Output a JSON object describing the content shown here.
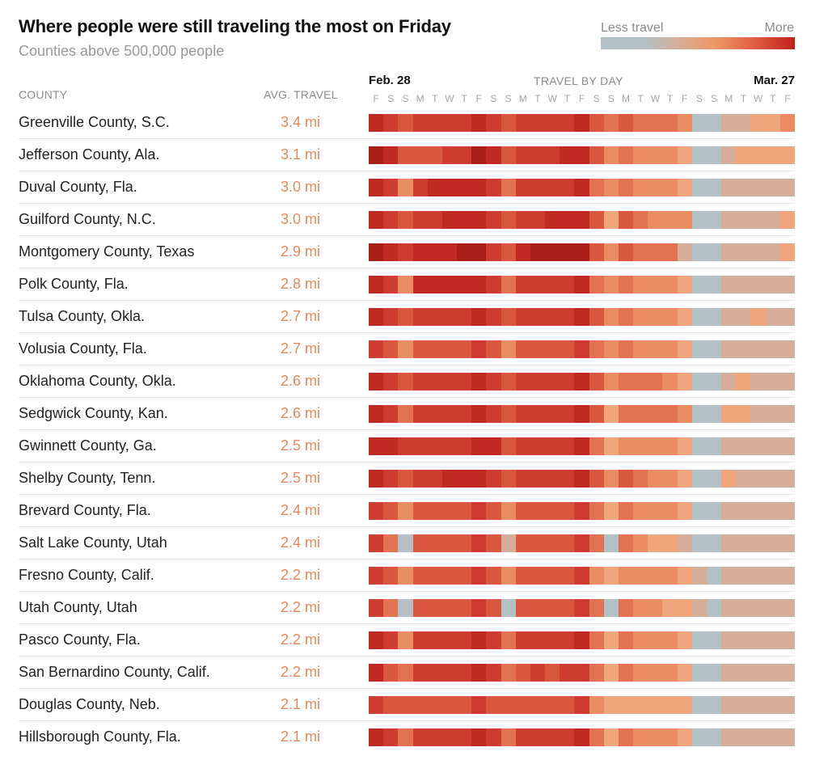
{
  "title": "Where people were still traveling the most on Friday",
  "subtitle": "Counties above 500,000 people",
  "legend": {
    "less_label": "Less travel",
    "more_label": "More"
  },
  "headers": {
    "county": "COUNTY",
    "avg_travel": "AVG. TRAVEL",
    "travel_by_day": "TRAVEL BY DAY",
    "start_date": "Feb. 28",
    "end_date": "Mar. 27"
  },
  "colors": {
    "scale": [
      "#b3c1c6",
      "#d6ad98",
      "#f0a57c",
      "#e98c62",
      "#e37252",
      "#d9563f",
      "#cd3c2f",
      "#c12a23",
      "#a81d16"
    ],
    "avg_text": "#e3895e"
  },
  "chart_data": {
    "type": "heatmap",
    "title": "Where people were still traveling the most on Friday",
    "subtitle": "Counties above 500,000 people",
    "x_start": "Feb. 28",
    "x_end": "Mar. 27",
    "x_label": "TRAVEL BY DAY",
    "value_scale": {
      "min": 0,
      "max": 8,
      "min_label": "Less travel",
      "max_label": "More"
    },
    "day_letters": [
      "F",
      "S",
      "S",
      "M",
      "T",
      "W",
      "T",
      "F",
      "S",
      "S",
      "M",
      "T",
      "W",
      "T",
      "F",
      "S",
      "S",
      "M",
      "T",
      "W",
      "T",
      "F",
      "S",
      "S",
      "M",
      "T",
      "W",
      "T",
      "F"
    ],
    "rows": [
      {
        "county": "Greenville County, S.C.",
        "avg": "3.4 mi",
        "levels": [
          7,
          6,
          5,
          6,
          6,
          6,
          6,
          7,
          6,
          5,
          6,
          6,
          6,
          6,
          7,
          5,
          4,
          5,
          4,
          4,
          4,
          3,
          0,
          0,
          1,
          1,
          2,
          2,
          3
        ]
      },
      {
        "county": "Jefferson County, Ala.",
        "avg": "3.1 mi",
        "levels": [
          8,
          7,
          5,
          5,
          5,
          6,
          6,
          8,
          7,
          5,
          6,
          6,
          6,
          7,
          7,
          5,
          3,
          4,
          3,
          3,
          3,
          2,
          0,
          0,
          1,
          2,
          2,
          2,
          2
        ]
      },
      {
        "county": "Duval County, Fla.",
        "avg": "3.0 mi",
        "levels": [
          7,
          6,
          3,
          6,
          7,
          7,
          7,
          7,
          6,
          4,
          6,
          6,
          6,
          6,
          7,
          4,
          3,
          4,
          3,
          3,
          3,
          2,
          0,
          0,
          1,
          1,
          1,
          1,
          1
        ]
      },
      {
        "county": "Guilford County, N.C.",
        "avg": "3.0 mi",
        "levels": [
          7,
          6,
          5,
          6,
          6,
          7,
          7,
          7,
          6,
          5,
          6,
          6,
          7,
          7,
          7,
          5,
          2,
          5,
          4,
          3,
          3,
          3,
          0,
          0,
          1,
          1,
          1,
          1,
          2
        ]
      },
      {
        "county": "Montgomery County, Texas",
        "avg": "2.9 mi",
        "levels": [
          8,
          7,
          6,
          7,
          7,
          7,
          8,
          8,
          6,
          5,
          7,
          8,
          8,
          8,
          8,
          5,
          3,
          5,
          4,
          4,
          4,
          1,
          0,
          0,
          1,
          1,
          1,
          1,
          2
        ]
      },
      {
        "county": "Polk County, Fla.",
        "avg": "2.8 mi",
        "levels": [
          7,
          6,
          3,
          7,
          7,
          7,
          7,
          7,
          6,
          4,
          6,
          6,
          6,
          6,
          7,
          4,
          3,
          4,
          3,
          3,
          3,
          2,
          0,
          0,
          1,
          1,
          1,
          1,
          1
        ]
      },
      {
        "county": "Tulsa County, Okla.",
        "avg": "2.7 mi",
        "levels": [
          7,
          6,
          5,
          6,
          6,
          6,
          6,
          7,
          6,
          5,
          6,
          6,
          6,
          6,
          7,
          5,
          3,
          4,
          3,
          3,
          3,
          2,
          0,
          0,
          1,
          1,
          2,
          1,
          1
        ]
      },
      {
        "county": "Volusia County, Fla.",
        "avg": "2.7 mi",
        "levels": [
          6,
          5,
          3,
          5,
          5,
          5,
          5,
          6,
          5,
          3,
          5,
          5,
          5,
          5,
          6,
          4,
          3,
          4,
          3,
          3,
          3,
          2,
          0,
          0,
          1,
          1,
          1,
          1,
          1
        ]
      },
      {
        "county": "Oklahoma County, Okla.",
        "avg": "2.6 mi",
        "levels": [
          7,
          6,
          5,
          6,
          6,
          6,
          6,
          7,
          6,
          5,
          6,
          6,
          6,
          6,
          7,
          5,
          3,
          4,
          4,
          4,
          3,
          2,
          0,
          0,
          1,
          2,
          1,
          1,
          1
        ]
      },
      {
        "county": "Sedgwick County, Kan.",
        "avg": "2.6 mi",
        "levels": [
          7,
          6,
          4,
          6,
          6,
          6,
          6,
          7,
          6,
          5,
          6,
          6,
          6,
          6,
          7,
          5,
          2,
          4,
          4,
          4,
          4,
          3,
          0,
          0,
          2,
          2,
          1,
          1,
          1
        ]
      },
      {
        "county": "Gwinnett County, Ga.",
        "avg": "2.5 mi",
        "levels": [
          7,
          7,
          6,
          6,
          6,
          6,
          6,
          7,
          7,
          5,
          6,
          6,
          6,
          6,
          7,
          4,
          2,
          3,
          3,
          3,
          3,
          2,
          0,
          0,
          1,
          1,
          1,
          1,
          1
        ]
      },
      {
        "county": "Shelby County, Tenn.",
        "avg": "2.5 mi",
        "levels": [
          7,
          6,
          5,
          6,
          6,
          7,
          7,
          7,
          6,
          5,
          6,
          6,
          6,
          6,
          7,
          5,
          3,
          5,
          4,
          3,
          3,
          2,
          0,
          0,
          2,
          1,
          1,
          1,
          1
        ]
      },
      {
        "county": "Brevard County, Fla.",
        "avg": "2.4 mi",
        "levels": [
          6,
          5,
          3,
          5,
          5,
          5,
          5,
          6,
          5,
          3,
          5,
          5,
          5,
          5,
          6,
          4,
          2,
          4,
          3,
          3,
          3,
          2,
          0,
          0,
          1,
          1,
          1,
          1,
          1
        ]
      },
      {
        "county": "Salt Lake County, Utah",
        "avg": "2.4 mi",
        "levels": [
          6,
          4,
          0,
          5,
          5,
          5,
          5,
          6,
          5,
          1,
          5,
          5,
          5,
          5,
          6,
          4,
          0,
          4,
          3,
          2,
          2,
          1,
          0,
          0,
          1,
          1,
          1,
          1,
          1
        ]
      },
      {
        "county": "Fresno County, Calif.",
        "avg": "2.2 mi",
        "levels": [
          6,
          5,
          3,
          5,
          5,
          5,
          5,
          6,
          5,
          3,
          5,
          5,
          5,
          5,
          6,
          3,
          2,
          3,
          3,
          3,
          3,
          2,
          1,
          0,
          1,
          1,
          1,
          1,
          1
        ]
      },
      {
        "county": "Utah County, Utah",
        "avg": "2.2 mi",
        "levels": [
          6,
          4,
          0,
          5,
          5,
          5,
          5,
          6,
          5,
          0,
          5,
          5,
          5,
          5,
          6,
          4,
          0,
          4,
          3,
          3,
          2,
          2,
          1,
          0,
          1,
          1,
          1,
          1,
          1
        ]
      },
      {
        "county": "Pasco County, Fla.",
        "avg": "2.2 mi",
        "levels": [
          7,
          6,
          3,
          6,
          6,
          6,
          6,
          7,
          6,
          4,
          6,
          6,
          6,
          6,
          7,
          4,
          2,
          4,
          3,
          3,
          3,
          2,
          0,
          0,
          1,
          1,
          1,
          1,
          1
        ]
      },
      {
        "county": "San Bernardino County, Calif.",
        "avg": "2.2 mi",
        "levels": [
          7,
          5,
          4,
          6,
          6,
          6,
          6,
          7,
          6,
          4,
          5,
          6,
          5,
          6,
          6,
          4,
          2,
          4,
          3,
          3,
          3,
          2,
          0,
          0,
          1,
          1,
          1,
          1,
          1
        ]
      },
      {
        "county": "Douglas County, Neb.",
        "avg": "2.1 mi",
        "levels": [
          6,
          5,
          5,
          5,
          5,
          5,
          5,
          6,
          5,
          5,
          5,
          5,
          5,
          5,
          6,
          3,
          2,
          2,
          2,
          2,
          2,
          2,
          0,
          0,
          1,
          1,
          1,
          1,
          1
        ]
      },
      {
        "county": "Hillsborough County, Fla.",
        "avg": "2.1 mi",
        "levels": [
          7,
          6,
          4,
          6,
          6,
          6,
          6,
          7,
          6,
          4,
          6,
          6,
          6,
          6,
          7,
          4,
          2,
          4,
          3,
          3,
          3,
          2,
          0,
          0,
          1,
          1,
          1,
          1,
          1
        ]
      }
    ]
  }
}
